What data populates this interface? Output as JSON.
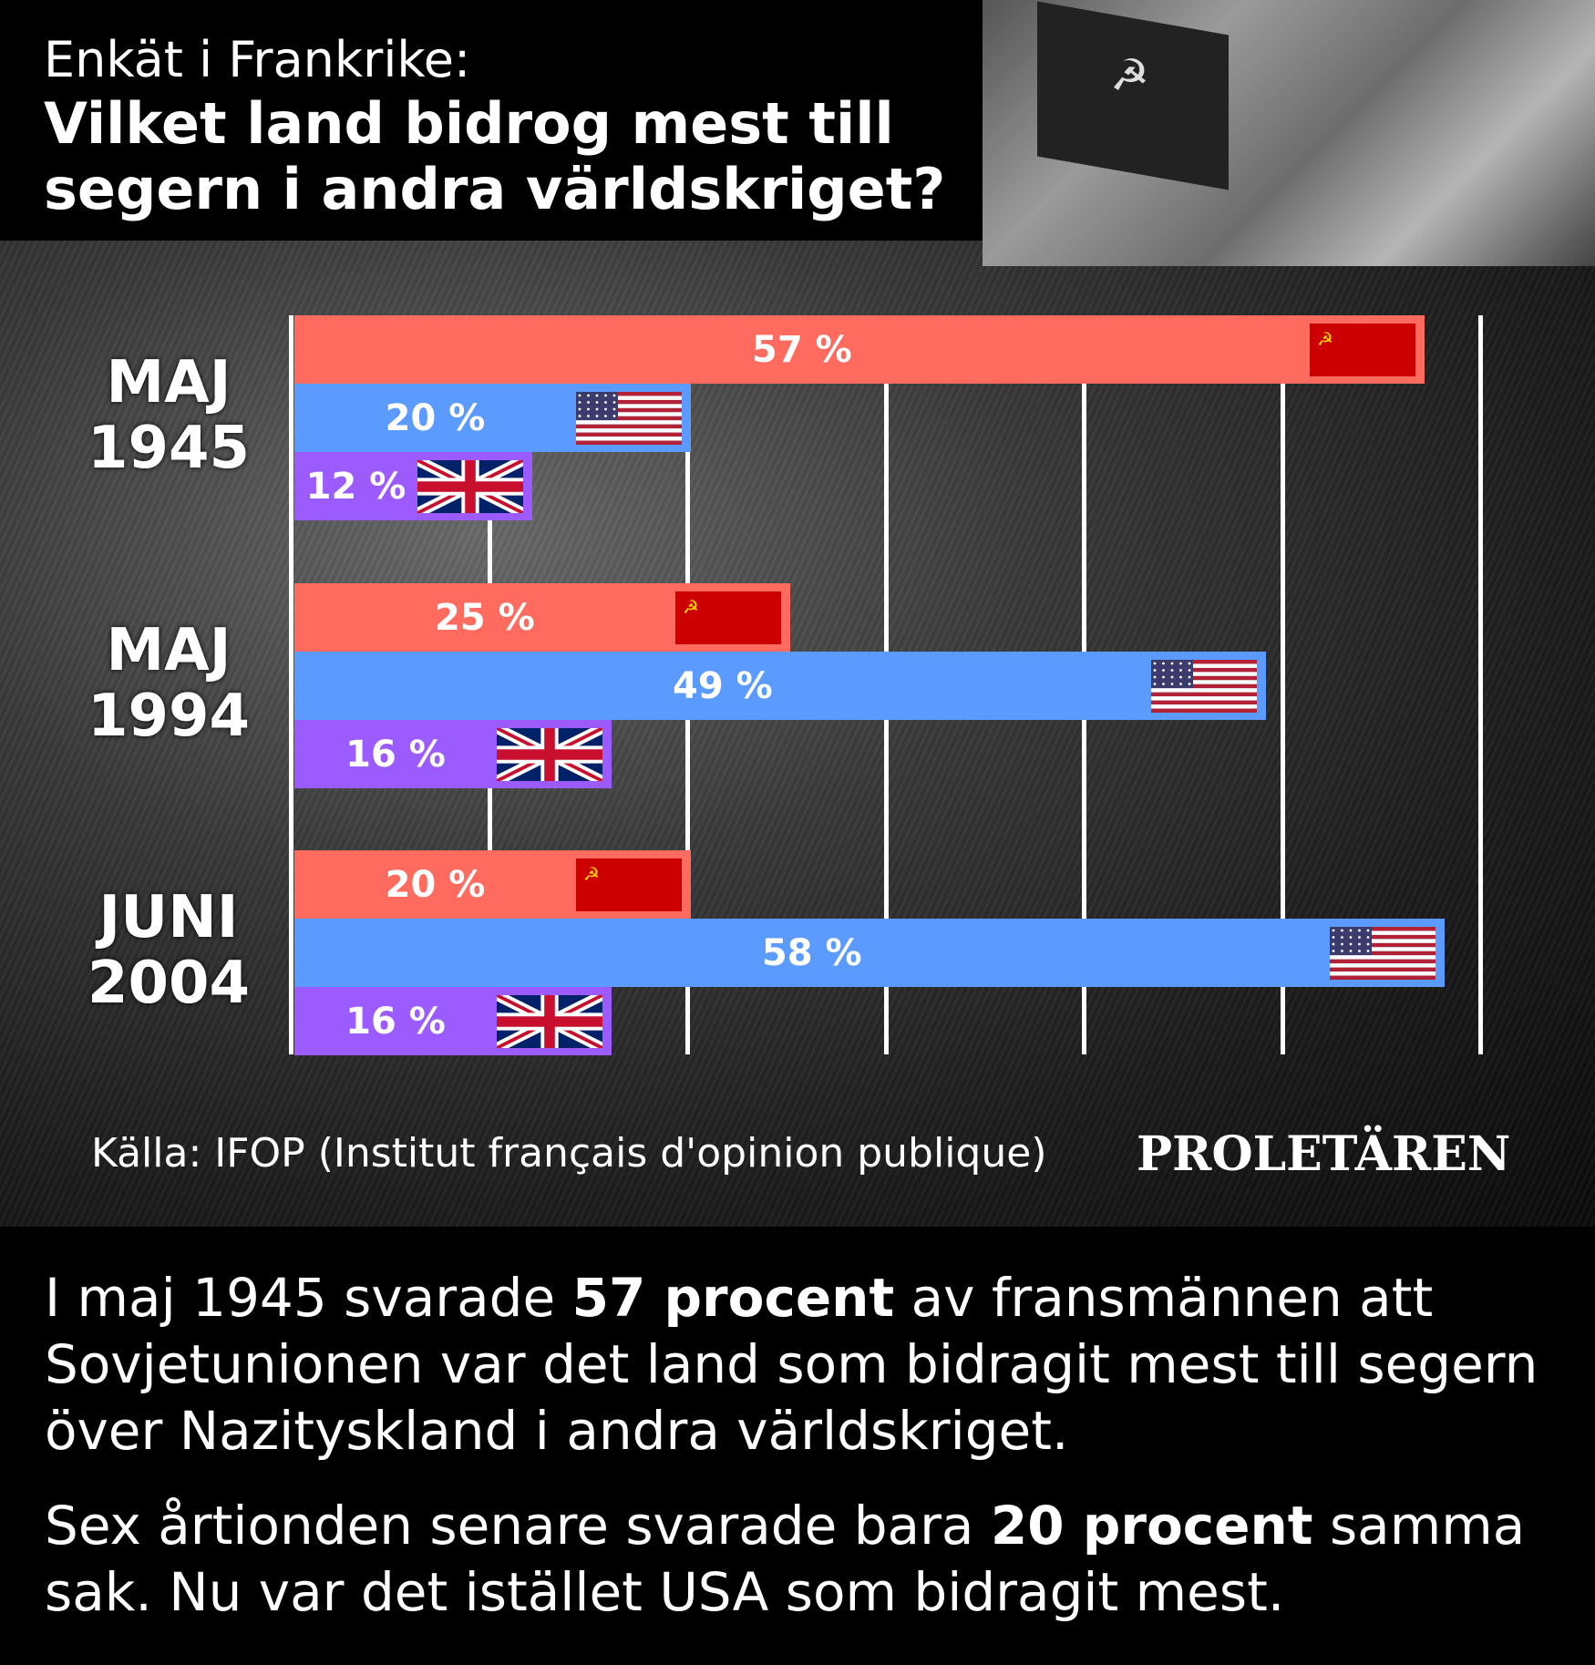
{
  "header": {
    "kicker": "Enkät i Frankrike:",
    "question": "Vilket land bidrog mest till segern i andra världskriget?"
  },
  "chart_data": {
    "type": "bar",
    "orientation": "horizontal",
    "categories": [
      "MAJ 1945",
      "MAJ 1994",
      "JUNI 2004"
    ],
    "category_lines": [
      [
        "MAJ",
        "1945"
      ],
      [
        "MAJ",
        "1994"
      ],
      [
        "JUNI",
        "2004"
      ]
    ],
    "series": [
      {
        "country": "Soviet Union",
        "flag": "ussr-flag",
        "color": "#ff6b5e",
        "values": [
          57,
          25,
          20
        ]
      },
      {
        "country": "USA",
        "flag": "usa-flag",
        "color": "#5b9bff",
        "values": [
          20,
          49,
          58
        ]
      },
      {
        "country": "United Kingdom",
        "flag": "uk-flag",
        "color": "#9b5bff",
        "values": [
          12,
          16,
          16
        ]
      }
    ],
    "value_labels": [
      [
        "57 %",
        "20 %",
        "12 %"
      ],
      [
        "25 %",
        "49 %",
        "16 %"
      ],
      [
        "20 %",
        "58 %",
        "16 %"
      ]
    ],
    "xlim": [
      0,
      60
    ],
    "grid": true,
    "grid_step": 10
  },
  "footer": {
    "source": "Källa: IFOP (Institut français d'opinion publique)",
    "brand": "PROLETÄREN"
  },
  "text": {
    "p1_a": "I maj 1945 svarade ",
    "p1_b": "57 procent",
    "p1_c": " av fransmännen att Sovjetunionen var det land som bidragit mest till segern över Nazityskland i andra världskriget.",
    "p2_a": "Sex årtionden senare svarade bara ",
    "p2_b": "20 procent",
    "p2_c": " samma sak. Nu var det istället USA som bidragit mest."
  }
}
